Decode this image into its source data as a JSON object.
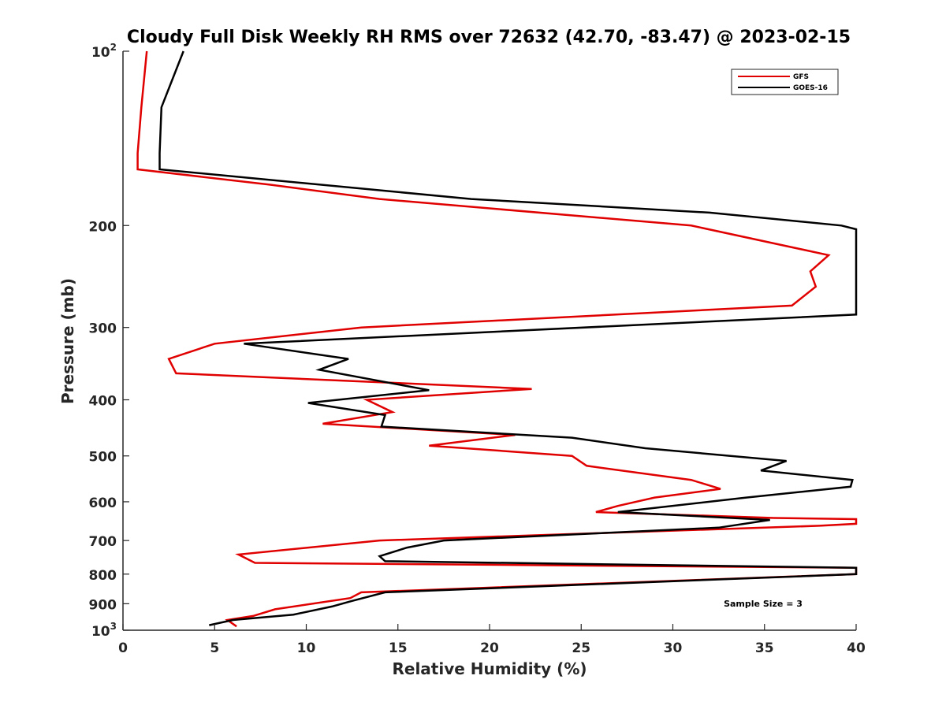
{
  "chart_data": {
    "type": "line",
    "title": "Cloudy Full Disk Weekly RH RMS over 72632 (42.70, -83.47) @ 2023-02-15",
    "xlabel": "Relative Humidity (%)",
    "ylabel": "Pressure (mb)",
    "xlim": [
      0,
      40
    ],
    "ylim": [
      100,
      1000
    ],
    "y_scale": "log",
    "y_reversed": true,
    "grid": false,
    "legend_position": "top-right",
    "x_ticks": [
      0,
      5,
      10,
      15,
      20,
      25,
      30,
      35,
      40
    ],
    "y_ticks": [
      {
        "value": 100,
        "base": "10",
        "exp": "2"
      },
      {
        "value": 200,
        "label": "200"
      },
      {
        "value": 300,
        "label": "300"
      },
      {
        "value": 400,
        "label": "400"
      },
      {
        "value": 500,
        "label": "500"
      },
      {
        "value": 600,
        "label": "600"
      },
      {
        "value": 700,
        "label": "700"
      },
      {
        "value": 800,
        "label": "800"
      },
      {
        "value": 900,
        "label": "900"
      },
      {
        "value": 1000,
        "base": "10",
        "exp": "3"
      }
    ],
    "series": [
      {
        "name": "GFS",
        "color": "#e00000",
        "points": [
          [
            1.3,
            100
          ],
          [
            1.0,
            125
          ],
          [
            0.8,
            150
          ],
          [
            0.8,
            160
          ],
          [
            8,
            170
          ],
          [
            14,
            180
          ],
          [
            31,
            200
          ],
          [
            38.5,
            225
          ],
          [
            37.5,
            240
          ],
          [
            37.8,
            255
          ],
          [
            36.5,
            275
          ],
          [
            13,
            300
          ],
          [
            5,
            320
          ],
          [
            2.5,
            340
          ],
          [
            2.9,
            360
          ],
          [
            22.3,
            383
          ],
          [
            13.3,
            400
          ],
          [
            14.7,
            420
          ],
          [
            10.9,
            440
          ],
          [
            21.4,
            460
          ],
          [
            16.7,
            480
          ],
          [
            24.5,
            500
          ],
          [
            25.3,
            520
          ],
          [
            31,
            550
          ],
          [
            32.6,
            570
          ],
          [
            29,
            590
          ],
          [
            27,
            610
          ],
          [
            25.8,
            625
          ],
          [
            35.5,
            640
          ],
          [
            40,
            643
          ],
          [
            40,
            655
          ],
          [
            38,
            660
          ],
          [
            14,
            700
          ],
          [
            6.3,
            740
          ],
          [
            7.2,
            765
          ],
          [
            40,
            780
          ],
          [
            40,
            800
          ],
          [
            13,
            860
          ],
          [
            12.4,
            880
          ],
          [
            8.3,
            920
          ],
          [
            7.1,
            945
          ],
          [
            5.7,
            960
          ],
          [
            6.2,
            985
          ]
        ]
      },
      {
        "name": "GOES-16",
        "color": "#000000",
        "points": [
          [
            3.3,
            100
          ],
          [
            2.1,
            125
          ],
          [
            2.0,
            150
          ],
          [
            2.0,
            160
          ],
          [
            19,
            180
          ],
          [
            32,
            190
          ],
          [
            39.2,
            200
          ],
          [
            40,
            203
          ],
          [
            40,
            285
          ],
          [
            6.6,
            320
          ],
          [
            12.3,
            340
          ],
          [
            10.7,
            355
          ],
          [
            16.7,
            385
          ],
          [
            10.1,
            405
          ],
          [
            14.3,
            425
          ],
          [
            14.1,
            445
          ],
          [
            24.5,
            465
          ],
          [
            28.5,
            485
          ],
          [
            36.2,
            510
          ],
          [
            34.8,
            530
          ],
          [
            39.8,
            550
          ],
          [
            39.7,
            565
          ],
          [
            34,
            590
          ],
          [
            27,
            625
          ],
          [
            35.3,
            645
          ],
          [
            32.5,
            665
          ],
          [
            17.5,
            700
          ],
          [
            15.5,
            720
          ],
          [
            14.0,
            745
          ],
          [
            14.3,
            760
          ],
          [
            40,
            780
          ],
          [
            40,
            800
          ],
          [
            14.3,
            860
          ],
          [
            12.5,
            890
          ],
          [
            11.4,
            910
          ],
          [
            9.3,
            940
          ],
          [
            6.0,
            960
          ],
          [
            4.7,
            980
          ]
        ]
      }
    ],
    "annotation": "Sample Size = 3"
  }
}
